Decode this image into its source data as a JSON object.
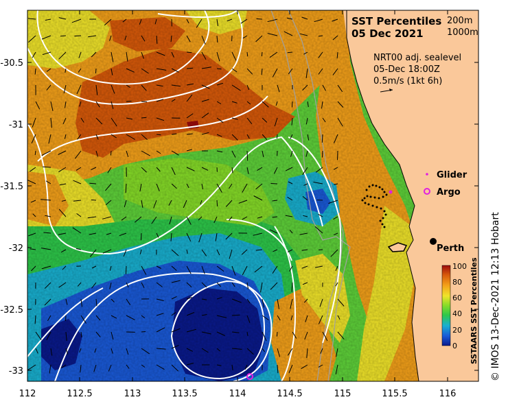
{
  "title": {
    "line1": "SST Percentiles",
    "line2": "05 Dec 2021"
  },
  "depth_legend": {
    "contour_shallow": "200m",
    "contour_deep": "1000m"
  },
  "info": {
    "line1": "NRT00 adj. sealevel",
    "line2": "05-Dec 18:00Z",
    "line3": "0.5m/s (1kt 6h)"
  },
  "legend": {
    "glider": "Glider",
    "argo": "Argo",
    "city": "Perth"
  },
  "credit": "© IMOS 13-Dec-2021 12:13 Hobart",
  "colorbar": {
    "label": "SSTAARS SST Percentiles",
    "ticks": [
      "0",
      "20",
      "40",
      "60",
      "80",
      "100"
    ],
    "colors": [
      "#0a1a8c",
      "#1a5ad8",
      "#19b0d0",
      "#2ec84a",
      "#86dc28",
      "#f0e42a",
      "#f4a11a",
      "#d85a0a",
      "#9c0c0c"
    ]
  },
  "axes": {
    "x_ticks": [
      "112",
      "112.5",
      "113",
      "113.5",
      "114",
      "114.5",
      "115",
      "115.5",
      "116"
    ],
    "y_ticks": [
      "-30.5",
      "-31",
      "-31.5",
      "-32",
      "-32.5",
      "-33"
    ],
    "x_range": [
      112,
      116.3
    ],
    "y_range": [
      -33.1,
      -30.1
    ]
  },
  "colors": {
    "land": "#fac89a",
    "glider": "#e020e0",
    "argo": "#e020e0",
    "contour": "#ffffff"
  }
}
